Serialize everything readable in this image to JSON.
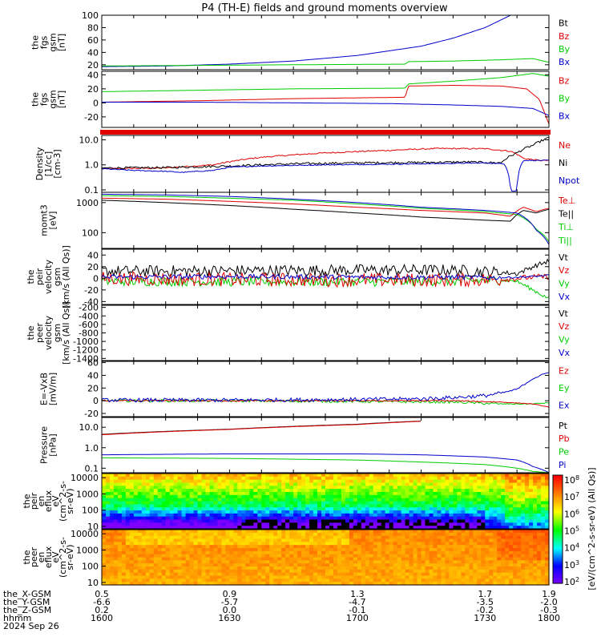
{
  "title": "P4 (TH-E) fields and ground moments overview",
  "colors": {
    "black": "#000000",
    "red": "#e00000",
    "green": "#00cc00",
    "blue": "#0000cc",
    "grid_frame": "#000000"
  },
  "chart_data": [
    {
      "id": "fgs_gsm_1",
      "type": "line",
      "ylabel": [
        "the",
        "fgs",
        "gsm",
        "[nT]"
      ],
      "yticks": [
        20,
        40,
        60,
        80,
        100
      ],
      "ylim": [
        12,
        100
      ],
      "scale": "linear",
      "legend": [
        {
          "name": "Bt",
          "color": "#000000"
        },
        {
          "name": "Bz",
          "color": "#e00000"
        },
        {
          "name": "By",
          "color": "#00cc00"
        },
        {
          "name": "Bx",
          "color": "#0000cc"
        }
      ],
      "series": [
        {
          "name": "Bx",
          "color": "#0000cc",
          "x": [
            0.5,
            0.7,
            0.9,
            1.1,
            1.3,
            1.5,
            1.6,
            1.7,
            1.78
          ],
          "y": [
            17,
            18,
            21,
            26,
            35,
            50,
            63,
            80,
            100
          ]
        },
        {
          "name": "By",
          "color": "#00cc00",
          "x": [
            0.5,
            0.8,
            1.1,
            1.45,
            1.46,
            1.6,
            1.75,
            1.85,
            1.9
          ],
          "y": [
            18,
            19,
            20,
            21,
            25,
            26,
            28,
            30,
            24
          ]
        }
      ]
    },
    {
      "id": "fgs_gsm_2",
      "type": "line",
      "ylabel": [
        "the",
        "fgs",
        "gsm",
        "[nT]"
      ],
      "yticks": [
        -20,
        0,
        20,
        40
      ],
      "ylim": [
        -35,
        45
      ],
      "scale": "linear",
      "legend": [
        {
          "name": "Bz",
          "color": "#e00000"
        },
        {
          "name": "By",
          "color": "#00cc00"
        },
        {
          "name": "Bx",
          "color": "#0000cc"
        }
      ],
      "series": [
        {
          "name": "By",
          "color": "#00cc00",
          "x": [
            0.5,
            0.8,
            1.1,
            1.45,
            1.46,
            1.6,
            1.75,
            1.85,
            1.9
          ],
          "y": [
            16,
            18,
            20,
            21,
            27,
            31,
            36,
            42,
            38
          ]
        },
        {
          "name": "Bz",
          "color": "#e00000",
          "x": [
            0.5,
            0.8,
            1.1,
            1.45,
            1.46,
            1.6,
            1.75,
            1.83,
            1.87,
            1.9
          ],
          "y": [
            1,
            3,
            6,
            8,
            24,
            25,
            24,
            20,
            5,
            -30
          ]
        },
        {
          "name": "Bx",
          "color": "#0000cc",
          "x": [
            0.5,
            0.8,
            1.1,
            1.4,
            1.6,
            1.75,
            1.85,
            1.9
          ],
          "y": [
            1,
            1,
            0,
            -1,
            -3,
            -5,
            -8,
            -18
          ]
        }
      ]
    },
    {
      "id": "density",
      "type": "line",
      "ylabel": [
        "Density",
        "[1/cc]",
        "[cm-3]"
      ],
      "yticks": [
        0.1,
        1.0,
        10.0
      ],
      "ytick_labels": [
        "0.1",
        "1.0",
        "10.0"
      ],
      "ylim": [
        0.08,
        15
      ],
      "scale": "log",
      "legend": [
        {
          "name": "Ne",
          "color": "#e00000"
        },
        {
          "name": "Ni",
          "color": "#000000"
        },
        {
          "name": "Npot",
          "color": "#0000cc"
        }
      ],
      "series": [
        {
          "name": "Ne",
          "color": "#e00000",
          "x": [
            0.5,
            0.7,
            0.85,
            1.0,
            1.2,
            1.4,
            1.55,
            1.7,
            1.78,
            1.82,
            1.87,
            1.9
          ],
          "y": [
            0.7,
            0.75,
            1.0,
            2.0,
            3.0,
            3.8,
            4.5,
            4.4,
            3.5,
            1.8,
            1.5,
            1.5
          ]
        },
        {
          "name": "Ni",
          "color": "#000000",
          "x": [
            0.5,
            0.7,
            0.9,
            1.1,
            1.3,
            1.5,
            1.65,
            1.75,
            1.8,
            1.85,
            1.9
          ],
          "y": [
            0.75,
            0.78,
            0.9,
            1.1,
            1.2,
            1.25,
            1.3,
            1.2,
            3.0,
            6.0,
            12.0
          ]
        },
        {
          "name": "Npot",
          "color": "#0000cc",
          "x": [
            0.5,
            0.6,
            0.7,
            0.75,
            0.8,
            0.85,
            0.9,
            1.0,
            1.2,
            1.5,
            1.7,
            1.76,
            1.78,
            1.8,
            1.82,
            1.9
          ],
          "y": [
            0.7,
            0.6,
            0.55,
            0.5,
            0.55,
            0.6,
            0.8,
            0.9,
            1.0,
            1.1,
            1.2,
            1.1,
            0.09,
            0.09,
            1.5,
            1.5
          ]
        }
      ]
    },
    {
      "id": "moms",
      "type": "line",
      "ylabel": [
        "momt3",
        "[eV]"
      ],
      "yticks": [
        100,
        1000
      ],
      "ytick_labels": [
        "100",
        "1000"
      ],
      "ylim": [
        30,
        2200
      ],
      "scale": "log",
      "legend": [
        {
          "name": "Te⊥",
          "color": "#e00000"
        },
        {
          "name": "Te||",
          "color": "#000000"
        },
        {
          "name": "Ti⊥",
          "color": "#00cc00"
        },
        {
          "name": "Ti||",
          "color": "#00cc00"
        }
      ],
      "series": [
        {
          "name": "Ti||",
          "color": "#00cc00",
          "x": [
            0.5,
            0.7,
            0.9,
            1.1,
            1.3,
            1.5,
            1.7,
            1.8,
            1.86,
            1.9
          ],
          "y": [
            1700,
            1600,
            1400,
            1200,
            900,
            650,
            500,
            400,
            130,
            50
          ]
        },
        {
          "name": "Te⊥",
          "color": "#e00000",
          "x": [
            0.5,
            0.7,
            0.9,
            1.1,
            1.3,
            1.5,
            1.7,
            1.78,
            1.82,
            1.86,
            1.9
          ],
          "y": [
            1400,
            1300,
            1100,
            900,
            700,
            550,
            450,
            350,
            700,
            500,
            650
          ]
        },
        {
          "name": "Te||",
          "color": "#000000",
          "x": [
            0.5,
            0.7,
            0.9,
            1.1,
            1.3,
            1.5,
            1.7,
            1.78,
            1.82,
            1.86,
            1.9
          ],
          "y": [
            1200,
            1000,
            800,
            600,
            450,
            330,
            260,
            240,
            550,
            450,
            600
          ]
        },
        {
          "name": "Ti⊥",
          "color": "#0000cc",
          "x": [
            0.5,
            0.7,
            0.9,
            1.1,
            1.3,
            1.5,
            1.7,
            1.8,
            1.86,
            1.9
          ],
          "y": [
            1900,
            1800,
            1600,
            1300,
            1000,
            700,
            550,
            450,
            120,
            40
          ]
        }
      ]
    },
    {
      "id": "peir_velocity",
      "type": "line",
      "ylabel": [
        "the",
        "peir",
        "velocity",
        "gsm",
        "[km/s (All Qs)]"
      ],
      "yticks": [
        -40,
        -20,
        0,
        20,
        40
      ],
      "ylim": [
        -45,
        50
      ],
      "scale": "linear",
      "legend": [
        {
          "name": "Vt",
          "color": "#000000"
        },
        {
          "name": "Vz",
          "color": "#e00000"
        },
        {
          "name": "Vy",
          "color": "#00cc00"
        },
        {
          "name": "Vx",
          "color": "#0000cc"
        }
      ],
      "series": [
        {
          "name": "Vt",
          "color": "#000000",
          "x": [
            0.5,
            0.9,
            1.3,
            1.6,
            1.75,
            1.8,
            1.85,
            1.9
          ],
          "y": [
            12,
            13,
            14,
            14,
            10,
            8,
            20,
            30
          ]
        },
        {
          "name": "Vy",
          "color": "#00cc00",
          "x": [
            0.5,
            0.9,
            1.3,
            1.6,
            1.75,
            1.8,
            1.85,
            1.9
          ],
          "y": [
            -5,
            -6,
            -6,
            -5,
            -3,
            -5,
            -20,
            -35
          ]
        },
        {
          "name": "Vz",
          "color": "#e00000",
          "x": [
            0.5,
            0.9,
            1.3,
            1.6,
            1.75,
            1.8,
            1.85,
            1.9
          ],
          "y": [
            0,
            -2,
            -3,
            -3,
            -2,
            0,
            2,
            3
          ]
        },
        {
          "name": "Vx",
          "color": "#0000cc",
          "x": [
            0.5,
            0.9,
            1.3,
            1.6,
            1.75,
            1.8,
            1.85,
            1.9
          ],
          "y": [
            2,
            3,
            2,
            2,
            1,
            2,
            3,
            5
          ]
        }
      ]
    },
    {
      "id": "peer_velocity",
      "type": "line",
      "ylabel": [
        "the",
        "peer",
        "velocity",
        "gsm",
        "[km/s (All Qs)]"
      ],
      "yticks": [
        -1400,
        -1200,
        -1000,
        -800,
        -600,
        -400,
        -200
      ],
      "ylim": [
        -1450,
        -150
      ],
      "scale": "linear",
      "legend": [
        {
          "name": "Vt",
          "color": "#000000"
        },
        {
          "name": "Vz",
          "color": "#e00000"
        },
        {
          "name": "Vy",
          "color": "#00cc00"
        },
        {
          "name": "Vx",
          "color": "#0000cc"
        }
      ],
      "series": []
    },
    {
      "id": "efield",
      "type": "line",
      "ylabel": [
        "E=-VxB",
        "[mV/m]"
      ],
      "yticks": [
        -20,
        0,
        20,
        40,
        60
      ],
      "ylim": [
        -25,
        62
      ],
      "scale": "linear",
      "legend": [
        {
          "name": "Ez",
          "color": "#e00000"
        },
        {
          "name": "Ey",
          "color": "#00cc00"
        },
        {
          "name": "Ex",
          "color": "#0000cc"
        }
      ],
      "series": [
        {
          "name": "Ey",
          "color": "#00cc00",
          "x": [
            0.5,
            0.9,
            1.3,
            1.6,
            1.75,
            1.85,
            1.9
          ],
          "y": [
            0,
            0,
            -1,
            -2,
            -5,
            -5,
            -3
          ]
        },
        {
          "name": "Ez",
          "color": "#e00000",
          "x": [
            0.5,
            0.9,
            1.3,
            1.6,
            1.75,
            1.85,
            1.9
          ],
          "y": [
            0,
            0,
            0,
            0,
            -2,
            -5,
            -10
          ]
        },
        {
          "name": "Ex",
          "color": "#0000cc",
          "x": [
            0.5,
            0.9,
            1.3,
            1.5,
            1.6,
            1.7,
            1.75,
            1.8,
            1.85,
            1.9
          ],
          "y": [
            1,
            1,
            2,
            3,
            5,
            8,
            12,
            18,
            35,
            45
          ]
        }
      ]
    },
    {
      "id": "pressure",
      "type": "line",
      "ylabel": [
        "Pressure",
        "[nPa]"
      ],
      "yticks": [
        0.1,
        1.0,
        10.0
      ],
      "ytick_labels": [
        "0.1",
        "1.0",
        "10.0"
      ],
      "ylim": [
        0.06,
        30
      ],
      "scale": "log",
      "legend": [
        {
          "name": "Pt",
          "color": "#000000"
        },
        {
          "name": "Pb",
          "color": "#e00000"
        },
        {
          "name": "Pe",
          "color": "#00cc00"
        },
        {
          "name": "Pi",
          "color": "#0000cc"
        }
      ],
      "series": [
        {
          "name": "Pt",
          "color": "#000000",
          "x": [
            0.5,
            0.9,
            1.3,
            1.5
          ],
          "y": [
            4.5,
            8,
            14,
            20
          ]
        },
        {
          "name": "Pb",
          "color": "#e00000",
          "x": [
            0.5,
            0.9,
            1.3,
            1.5
          ],
          "y": [
            4.3,
            7.8,
            13.5,
            19.5
          ]
        },
        {
          "name": "Pi",
          "color": "#0000cc",
          "x": [
            0.5,
            0.9,
            1.3,
            1.5,
            1.7,
            1.8,
            1.85,
            1.9
          ],
          "y": [
            0.45,
            0.5,
            0.5,
            0.45,
            0.35,
            0.25,
            0.12,
            0.06
          ]
        },
        {
          "name": "Pe",
          "color": "#00cc00",
          "x": [
            0.5,
            0.9,
            1.3,
            1.5,
            1.7,
            1.8,
            1.85,
            1.9
          ],
          "y": [
            0.32,
            0.3,
            0.25,
            0.2,
            0.15,
            0.1,
            0.07,
            0.06
          ]
        }
      ]
    },
    {
      "id": "peir_en_eflux",
      "type": "heatmap",
      "ylabel": [
        "the",
        "peir",
        "en",
        "eflux",
        "eV",
        "(cm^2-s-",
        "sr-eV)"
      ],
      "yticks": [
        10,
        100,
        1000,
        10000
      ],
      "ytick_labels": [
        "10",
        "100",
        "1000",
        "10000"
      ]
    },
    {
      "id": "peer_en_eflux",
      "type": "heatmap",
      "ylabel": [
        "the",
        "peer",
        "en",
        "eflux",
        "eV",
        "(cm^2-s-",
        "sr-eV)"
      ],
      "yticks": [
        10,
        100,
        1000,
        10000
      ],
      "ytick_labels": [
        "10",
        "100",
        "1000",
        "10000"
      ]
    }
  ],
  "colorbar": {
    "ticks": [
      "10^8",
      "10^7",
      "10^6",
      "10^5",
      "10^4",
      "10^3",
      "10^2"
    ],
    "label": "[eV/(cm^2-s-sr-eV) (All Qs)]"
  },
  "x_axis": {
    "ticks": [
      0.5,
      0.9,
      1.3,
      1.7,
      1.9
    ],
    "rows": [
      {
        "name": "the_X-GSM",
        "values": [
          "0.5",
          "0.9",
          "1.3",
          "1.7",
          "1.9"
        ]
      },
      {
        "name": "the_Y-GSM",
        "values": [
          "-6.6",
          "-5.7",
          "-4.7",
          "-3.5",
          "-2.0"
        ]
      },
      {
        "name": "the_Z-GSM",
        "values": [
          "0.2",
          "0.0",
          "-0.1",
          "-0.2",
          "-0.3"
        ]
      },
      {
        "name": "hhmm",
        "values": [
          "1600",
          "1630",
          "1700",
          "1730",
          "1800"
        ]
      }
    ],
    "date": "2024 Sep 26"
  }
}
